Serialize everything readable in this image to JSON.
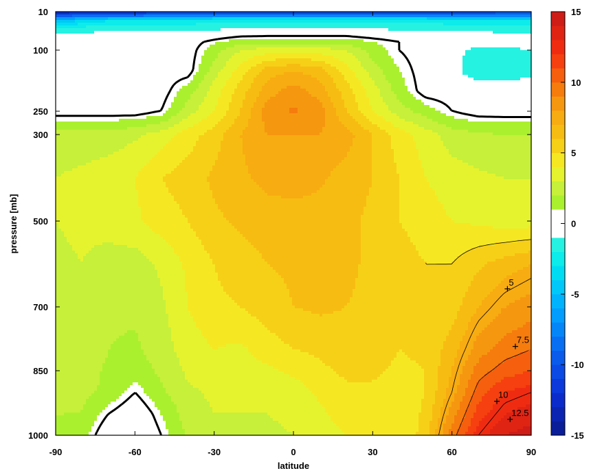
{
  "chart_data": {
    "type": "heatmap",
    "title": "",
    "xlabel": "latitude",
    "ylabel": "pressure [mb]",
    "x_ticks": [
      "-90",
      "-60",
      "-30",
      "0",
      "30",
      "60",
      "90"
    ],
    "y_ticks": [
      "10",
      "100",
      "250",
      "300",
      "500",
      "700",
      "850",
      "1000"
    ],
    "xlim": [
      -90,
      90
    ],
    "ylim": [
      1000,
      10
    ],
    "colorbar": {
      "ticks": [
        "15",
        "10",
        "5",
        "0",
        "-5",
        "-10",
        "-15"
      ],
      "range": [
        -15,
        15
      ],
      "step": 1
    },
    "color_stops": [
      {
        "v": -15,
        "c": "#0a1a8c"
      },
      {
        "v": -12,
        "c": "#0b30d8"
      },
      {
        "v": -9,
        "c": "#0a64f0"
      },
      {
        "v": -6,
        "c": "#00a8ff"
      },
      {
        "v": -3,
        "c": "#00e8f0"
      },
      {
        "v": -1,
        "c": "#33f5dd"
      },
      {
        "v": 1,
        "c": "#9ef02a"
      },
      {
        "v": 2.5,
        "c": "#c6f03a"
      },
      {
        "v": 4,
        "c": "#f4f428"
      },
      {
        "v": 6,
        "c": "#f7c411"
      },
      {
        "v": 8,
        "c": "#f7a411"
      },
      {
        "v": 10,
        "c": "#f46e0c"
      },
      {
        "v": 12,
        "c": "#f73010"
      },
      {
        "v": 15,
        "c": "#c61818"
      }
    ],
    "field": {
      "x": [
        -90,
        -80,
        -70,
        -60,
        -50,
        -40,
        -30,
        -20,
        -10,
        0,
        10,
        20,
        30,
        40,
        50,
        60,
        70,
        80,
        90
      ],
      "y": [
        10,
        30,
        50,
        80,
        100,
        150,
        200,
        250,
        300,
        400,
        500,
        600,
        700,
        800,
        850,
        900,
        950,
        1000
      ],
      "values": [
        [
          -14,
          -13,
          -13,
          -13,
          -12,
          -12,
          -12,
          -12,
          -12,
          -12,
          -12,
          -12,
          -12,
          -12,
          -12,
          -12,
          -12,
          -11,
          -11
        ],
        [
          -5,
          -4,
          -3,
          -3,
          -3,
          -3,
          -2,
          -2,
          -2,
          -2,
          -2,
          -2,
          -2,
          -2,
          -2,
          -3,
          -3,
          -3,
          -3
        ],
        [
          -1.5,
          -1.5,
          -1.2,
          -1.2,
          -1.2,
          -1.2,
          -1.2,
          -1.0,
          -0.8,
          -0.8,
          -0.8,
          -0.8,
          -1.0,
          -1.2,
          -1.2,
          -1.2,
          -1.2,
          -1.5,
          -1.5
        ],
        [
          0,
          0,
          0,
          0,
          0,
          0,
          0.8,
          1.5,
          1.5,
          1.5,
          1.5,
          1.5,
          1.0,
          0.5,
          0,
          0,
          0,
          0,
          0
        ],
        [
          0,
          0,
          0,
          0,
          0,
          0,
          1.5,
          3.0,
          3.5,
          3.5,
          3.5,
          3.0,
          1.5,
          0.5,
          0,
          -0.5,
          -1.5,
          -1.5,
          -1.0
        ],
        [
          0,
          0,
          0,
          0,
          0,
          0,
          2.5,
          4.5,
          6.5,
          7.0,
          6.5,
          4.5,
          2.5,
          1.0,
          0,
          -0.5,
          -2.0,
          -2.0,
          -1.5
        ],
        [
          0,
          0,
          0,
          0,
          0,
          1.5,
          3.5,
          5.5,
          7.5,
          8.5,
          7.5,
          5.5,
          3.5,
          1.5,
          0,
          0,
          0,
          0,
          0
        ],
        [
          0,
          0,
          0,
          0,
          0.5,
          2.5,
          4.0,
          6.0,
          8.5,
          9.2,
          8.5,
          6.0,
          4.0,
          2.5,
          1.5,
          0.5,
          0,
          0,
          0
        ],
        [
          2.5,
          2.5,
          2.5,
          2.8,
          3.5,
          4.5,
          5.5,
          7.0,
          8.0,
          8.0,
          8.0,
          7.5,
          6.0,
          4.5,
          3.5,
          2.5,
          2.2,
          2.0,
          2.0
        ],
        [
          3.0,
          3.2,
          3.5,
          4.0,
          5.0,
          5.5,
          6.2,
          6.8,
          7.3,
          7.5,
          7.2,
          6.5,
          6.0,
          5.0,
          4.0,
          3.5,
          3.2,
          3.0,
          3.0
        ],
        [
          3.0,
          3.2,
          3.5,
          3.8,
          4.5,
          5.0,
          5.8,
          6.2,
          6.5,
          6.5,
          6.5,
          6.2,
          5.8,
          5.0,
          4.5,
          4.0,
          3.8,
          3.5,
          3.5
        ],
        [
          2.8,
          3.0,
          2.5,
          2.5,
          3.2,
          4.2,
          5.0,
          5.5,
          6.0,
          6.2,
          6.5,
          6.2,
          5.8,
          5.5,
          5.0,
          5.0,
          5.8,
          6.5,
          7.0
        ],
        [
          2.5,
          3.0,
          2.2,
          2.2,
          2.8,
          4.0,
          4.8,
          5.0,
          5.5,
          6.0,
          6.2,
          6.0,
          5.8,
          5.2,
          5.0,
          5.5,
          7.0,
          8.0,
          8.5
        ],
        [
          2.8,
          3.0,
          2.0,
          1.8,
          2.5,
          3.5,
          4.0,
          3.8,
          4.5,
          5.0,
          5.2,
          5.5,
          5.5,
          5.0,
          5.2,
          6.5,
          8.5,
          9.5,
          10.0
        ],
        [
          2.8,
          2.5,
          1.8,
          1.5,
          2.2,
          3.2,
          3.5,
          3.5,
          3.8,
          4.2,
          4.8,
          5.2,
          5.2,
          4.8,
          5.0,
          7.0,
          9.5,
          10.5,
          11.0
        ],
        [
          2.5,
          2.2,
          1.8,
          0.5,
          1.8,
          2.8,
          3.2,
          3.2,
          3.2,
          3.5,
          4.2,
          4.8,
          4.8,
          4.6,
          5.0,
          7.5,
          10.5,
          12.0,
          12.5
        ],
        [
          2.0,
          2.0,
          0.5,
          -0.5,
          1.0,
          2.5,
          3.0,
          3.0,
          3.0,
          3.2,
          3.8,
          4.5,
          4.5,
          4.3,
          5.2,
          8.5,
          11.5,
          13.0,
          13.5
        ],
        [
          1.8,
          1.5,
          -0.5,
          -1.0,
          0.5,
          2.2,
          2.8,
          2.8,
          2.8,
          3.0,
          3.5,
          4.0,
          4.2,
          4.0,
          5.5,
          9.5,
          12.5,
          14.0,
          14.5
        ]
      ]
    },
    "contour_labels": [
      {
        "text": "5",
        "lat": 81,
        "p": 658
      },
      {
        "text": "7.5",
        "lat": 84,
        "p": 793
      },
      {
        "text": "10",
        "lat": 77,
        "p": 921
      },
      {
        "text": "12.5",
        "lat": 82,
        "p": 963
      }
    ]
  }
}
